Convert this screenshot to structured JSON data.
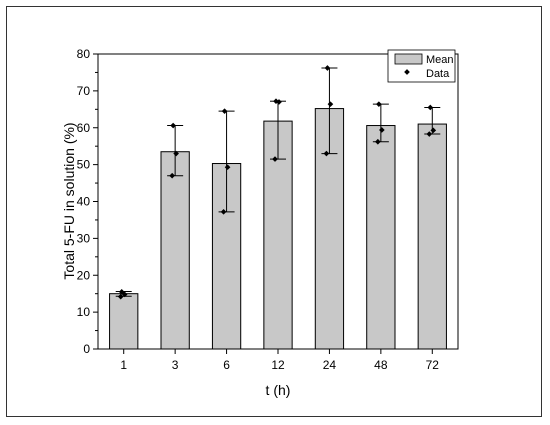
{
  "chart_data": {
    "type": "bar",
    "title": "",
    "xlabel": "t (h)",
    "ylabel": "Total 5-FU in solution (%)",
    "ylim": [
      0,
      80
    ],
    "yticks": [
      0,
      10,
      20,
      30,
      40,
      50,
      60,
      70,
      80
    ],
    "categories": [
      "1",
      "3",
      "6",
      "12",
      "24",
      "48",
      "72"
    ],
    "series": [
      {
        "name": "Mean",
        "values": [
          15.0,
          53.5,
          50.3,
          61.8,
          65.2,
          60.6,
          61.0
        ],
        "error_upper": [
          15.6,
          60.6,
          64.5,
          67.2,
          76.2,
          66.4,
          65.5
        ],
        "error_lower": [
          14.3,
          47.0,
          37.2,
          51.5,
          53.0,
          56.2,
          58.3
        ]
      },
      {
        "name": "Data",
        "points": [
          [
            15.5,
            14.8,
            14.2
          ],
          [
            60.6,
            53.0,
            47.0
          ],
          [
            64.5,
            49.3,
            37.2
          ],
          [
            67.2,
            67.0,
            51.5
          ],
          [
            76.2,
            66.4,
            53.0
          ],
          [
            66.4,
            59.4,
            56.2
          ],
          [
            65.5,
            59.3,
            58.3
          ]
        ]
      }
    ],
    "legend": {
      "position": "top-right",
      "entries": [
        "Mean",
        "Data"
      ]
    },
    "grid": false,
    "colors": {
      "bar_fill": "#c8c8c8",
      "bar_stroke": "#000000",
      "marker": "#000000"
    }
  }
}
